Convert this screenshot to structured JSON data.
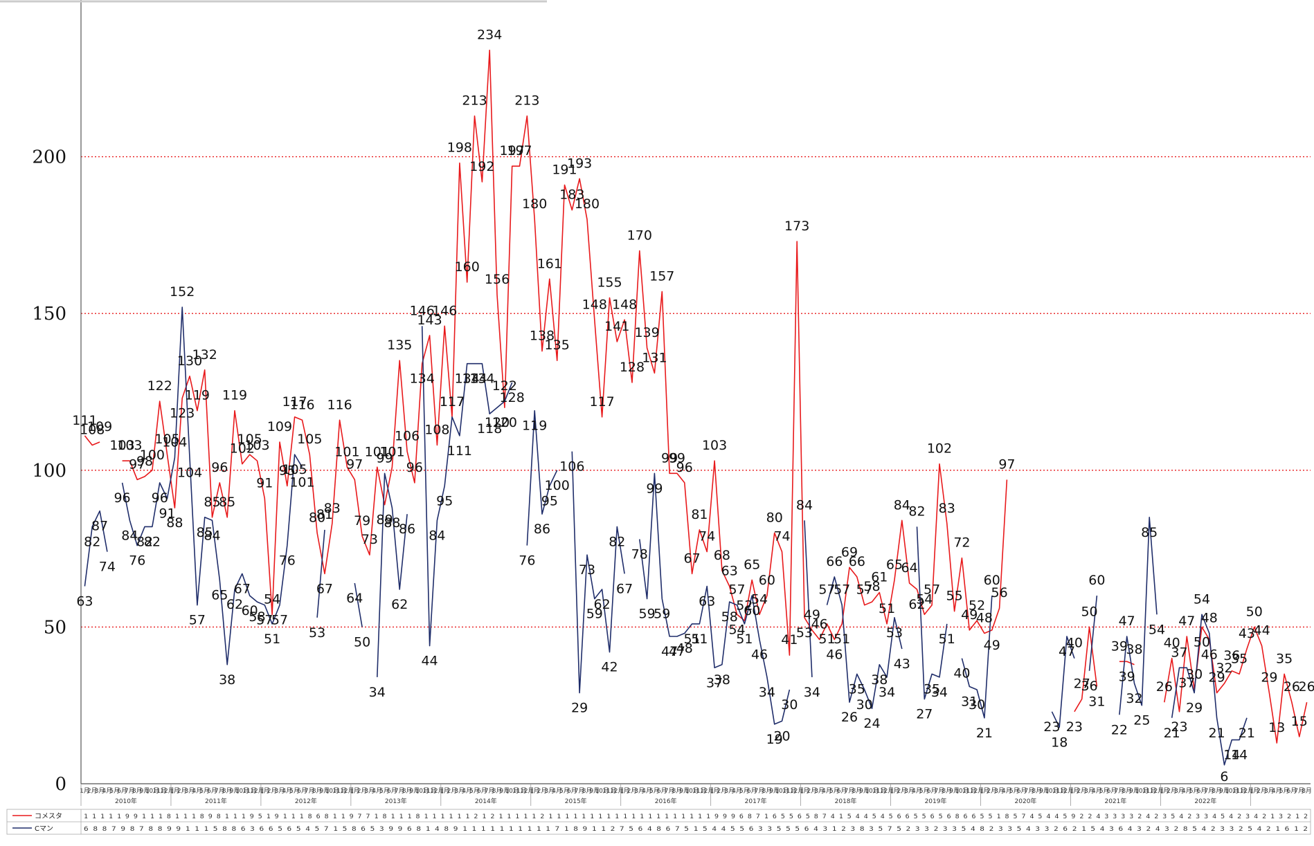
{
  "chart_data": {
    "type": "line",
    "title": "",
    "xlabel": "",
    "ylabel": "",
    "ylim": [
      0,
      250
    ],
    "yticks": [
      0,
      50,
      100,
      150,
      200
    ],
    "grid": "dotted red horizontal lines at 50, 100, 150, 200",
    "legend": "data table below the plot",
    "years": [
      "2010年",
      "2011年",
      "2012年",
      "2013年",
      "2014年",
      "2015年",
      "2016年",
      "2017年",
      "2018年",
      "2019年",
      "2020年",
      "2021年",
      "2022年"
    ],
    "months": [
      "1月",
      "2月",
      "3月",
      "4月",
      "5月",
      "6月",
      "7月",
      "8月",
      "9月",
      "10月",
      "11月",
      "12月"
    ],
    "series": [
      {
        "name": "コメスタ",
        "color": "#e8191b",
        "values": [
          111,
          108,
          109,
          null,
          null,
          103,
          103,
          97,
          98,
          100,
          122,
          105,
          88,
          123,
          130,
          119,
          132,
          85,
          96,
          85,
          119,
          102,
          105,
          103,
          91,
          54,
          109,
          95,
          117,
          116,
          105,
          80,
          67,
          83,
          116,
          101,
          97,
          79,
          73,
          101,
          89,
          101,
          135,
          106,
          96,
          134,
          143,
          108,
          146,
          117,
          198,
          160,
          213,
          192,
          234,
          156,
          120,
          197,
          197,
          213,
          180,
          138,
          161,
          135,
          191,
          183,
          193,
          180,
          148,
          117,
          155,
          141,
          148,
          128,
          170,
          139,
          131,
          157,
          99,
          99,
          96,
          67,
          81,
          74,
          103,
          68,
          63,
          54,
          52,
          65,
          54,
          60,
          80,
          74,
          41,
          173,
          53,
          49,
          46,
          51,
          46,
          51,
          69,
          66,
          57,
          58,
          61,
          51,
          65,
          84,
          64,
          62,
          54,
          57,
          102,
          83,
          55,
          72,
          49,
          52,
          48,
          49,
          56,
          97,
          null,
          null,
          null,
          null,
          null,
          null,
          null,
          null,
          23,
          27,
          50,
          31,
          null,
          null,
          39,
          39,
          38,
          null,
          null,
          null,
          26,
          40,
          23,
          47,
          30,
          50,
          46,
          29,
          32,
          36,
          35,
          43,
          50,
          44,
          29,
          13,
          35,
          26,
          15,
          26
        ]
      },
      {
        "name": "Cマン",
        "color": "#1f2d6a",
        "values": [
          63,
          82,
          87,
          74,
          null,
          96,
          84,
          76,
          82,
          82,
          96,
          91,
          104,
          152,
          104,
          57,
          85,
          84,
          65,
          38,
          62,
          67,
          60,
          58,
          57,
          51,
          57,
          76,
          105,
          101,
          null,
          53,
          81,
          null,
          null,
          null,
          64,
          50,
          null,
          34,
          99,
          88,
          62,
          86,
          null,
          146,
          44,
          84,
          95,
          117,
          111,
          134,
          134,
          134,
          118,
          120,
          122,
          128,
          null,
          76,
          119,
          86,
          95,
          100,
          null,
          106,
          29,
          73,
          59,
          62,
          42,
          82,
          67,
          null,
          78,
          59,
          99,
          59,
          47,
          47,
          48,
          51,
          51,
          63,
          37,
          38,
          58,
          57,
          51,
          60,
          46,
          34,
          19,
          20,
          30,
          null,
          84,
          34,
          null,
          57,
          66,
          57,
          26,
          35,
          30,
          24,
          38,
          34,
          53,
          43,
          null,
          82,
          27,
          35,
          34,
          51,
          null,
          40,
          31,
          30,
          21,
          60,
          null,
          null,
          null,
          null,
          null,
          null,
          null,
          23,
          18,
          47,
          40,
          null,
          36,
          60,
          null,
          null,
          22,
          47,
          32,
          25,
          85,
          54,
          null,
          21,
          37,
          37,
          29,
          54,
          48,
          21,
          6,
          14,
          14,
          21
        ]
      }
    ]
  },
  "table": {
    "row1": "1 1 1   1 1 9 9 1 1 1 8 1 1 1 8 9 8 1 1 1 9 5 1 9 1 1 1 8 6 8 1 1 9 7 7 1 8 1 1 1 8 1 1 1 1 1 1 2 1 2 1 1 1 1 1 2 1 1 1 1 1 1 1 1 1 1 1 1 1 1 1 1 1 1 1 1 9 9 9 6 8 7 1 6 5 5 6 5 8 7 4 1 5 4 4 5 4 5 6 6 5 5 6 5 6 8 6 6 5 5 1 8 5 7 4 5 4 4 5 9       2 2 4 3   3 3 3   2 4 2 3 5 4 2 3 3 4 5 4 2 3 4 2 1 3 2 1 2",
    "row2": "6 8 8 7   9 8 7 8 8 9 9 1 1 1 5 8 8 6 3 6 6 5 6 5 4 5 7 1   5 8   6 5   3 9   9 6 8   1 4 8 9 1 1 1 1 1 1 1 1 1 1   7 1 8 9 1   1 2 7 5 6 4 8 6   7 5 1 5 4 4 5 5 6 3 3 5 5 5 6 4 3 1 2 3   8 3   5 7 5 2 3 3 2 3 3 5 4   8 2 3 3 5   4 3 3 2 6       2   1 5 4   3 6   4   3 2 4 3 2 8 5 4 2 3 3 2 5 4 2 1 6 1 2"
  }
}
